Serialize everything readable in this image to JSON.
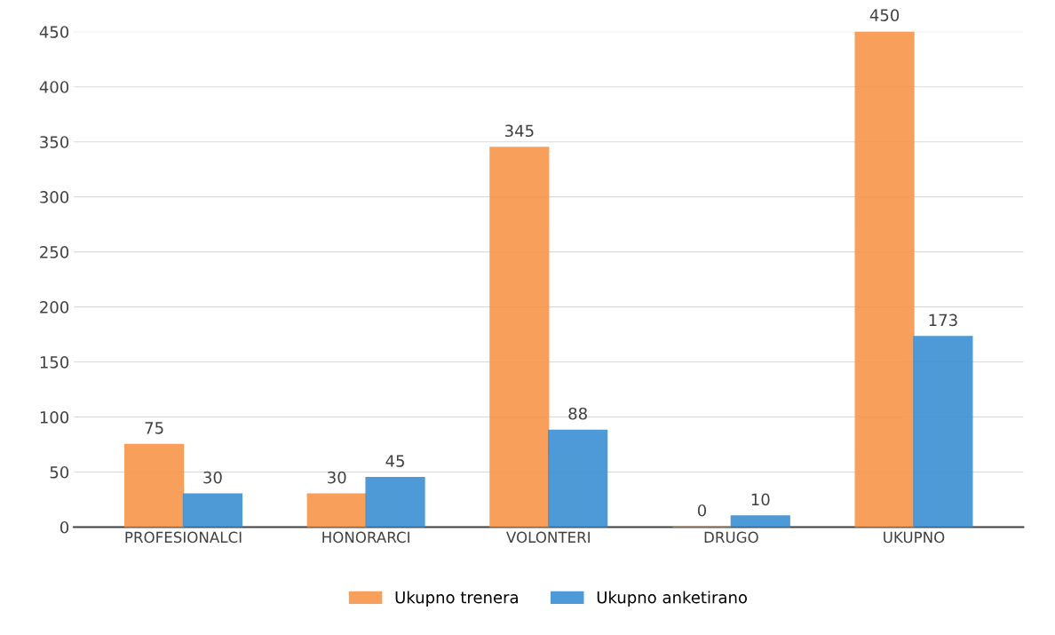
{
  "chart_data": {
    "type": "bar",
    "categories": [
      "PROFESIONALCI",
      "HONORARCI",
      "VOLONTERI",
      "DRUGO",
      "UKUPNO"
    ],
    "series": [
      {
        "name": "Ukupno trenera",
        "color": "#f8964a",
        "values": [
          75,
          30,
          345,
          0,
          450
        ]
      },
      {
        "name": "Ukupno anketirano",
        "color": "#3b8fd3",
        "values": [
          30,
          45,
          88,
          10,
          173
        ]
      }
    ],
    "ylim": [
      0,
      450
    ],
    "yticks": [
      0,
      50,
      100,
      150,
      200,
      250,
      300,
      350,
      400,
      450
    ],
    "grid": "y",
    "legend": "bottom",
    "data_labels": true
  }
}
